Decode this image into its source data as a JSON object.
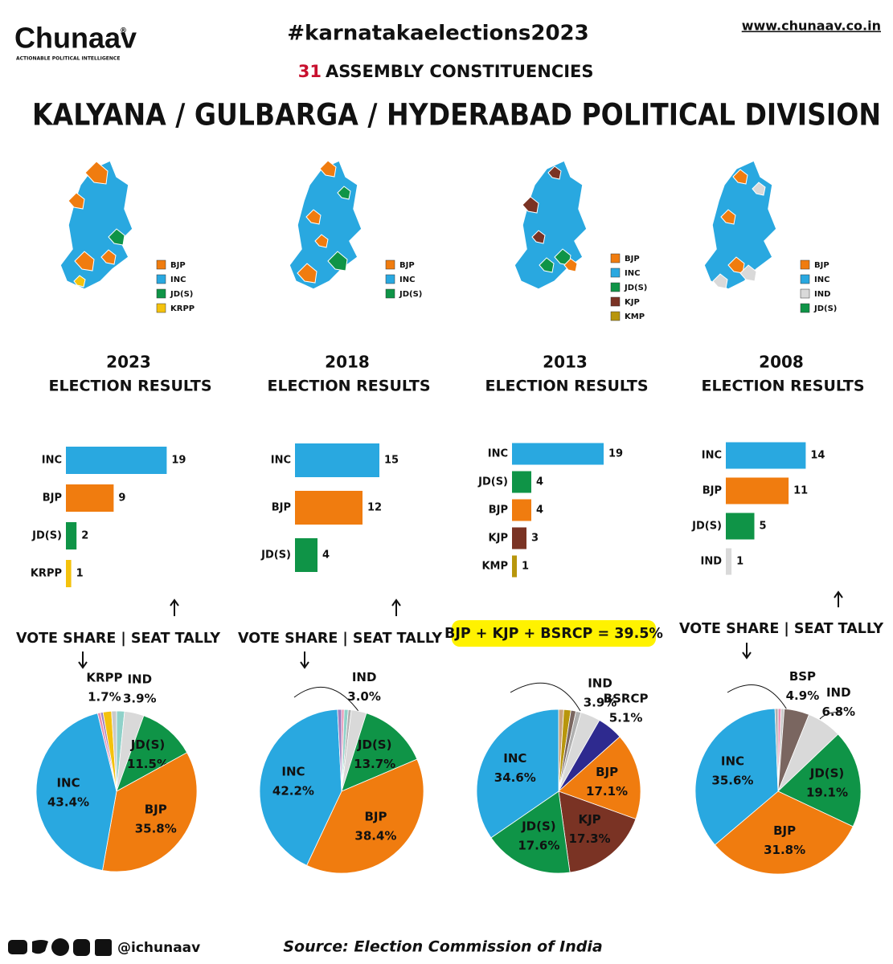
{
  "header": {
    "brand": "Chunaav",
    "registered": "®",
    "tagline": "ACTIONABLE POLITICAL INTELLIGENCE",
    "hashtag": "#karnatakaelections2023",
    "website": "www.chunaav.co.in",
    "seat_count": "31",
    "seat_text": "ASSEMBLY CONSTITUENCIES",
    "title": "KALYANA / GULBARGA / HYDERABAD POLITICAL DIVISION"
  },
  "maps": [
    {
      "legend": [
        {
          "label": "BJP",
          "color": "#f07c0f"
        },
        {
          "label": "INC",
          "color": "#29a8e0"
        },
        {
          "label": "JD(S)",
          "color": "#0f9447"
        },
        {
          "label": "KRPP",
          "color": "#f4c20d"
        }
      ]
    },
    {
      "legend": [
        {
          "label": "BJP",
          "color": "#f07c0f"
        },
        {
          "label": "INC",
          "color": "#29a8e0"
        },
        {
          "label": "JD(S)",
          "color": "#0f9447"
        }
      ]
    },
    {
      "legend": [
        {
          "label": "BJP",
          "color": "#f07c0f"
        },
        {
          "label": "INC",
          "color": "#29a8e0"
        },
        {
          "label": "JD(S)",
          "color": "#0f9447"
        },
        {
          "label": "KJP",
          "color": "#7a3324"
        },
        {
          "label": "KMP",
          "color": "#b8960c"
        }
      ]
    },
    {
      "legend": [
        {
          "label": "BJP",
          "color": "#f07c0f"
        },
        {
          "label": "INC",
          "color": "#29a8e0"
        },
        {
          "label": "IND",
          "color": "#d9d9d9"
        },
        {
          "label": "JD(S)",
          "color": "#0f9447"
        }
      ]
    }
  ],
  "chart_data": [
    {
      "type": "bar",
      "title": "2023",
      "subtitle": "ELECTION RESULTS",
      "categories": [
        "INC",
        "BJP",
        "JD(S)",
        "KRPP"
      ],
      "values": [
        19,
        9,
        2,
        1
      ],
      "colors": [
        "#29a8e0",
        "#f07c0f",
        "#0f9447",
        "#f4c20d"
      ]
    },
    {
      "type": "bar",
      "title": "2018",
      "subtitle": "ELECTION RESULTS",
      "categories": [
        "INC",
        "BJP",
        "JD(S)"
      ],
      "values": [
        15,
        12,
        4
      ],
      "colors": [
        "#29a8e0",
        "#f07c0f",
        "#0f9447"
      ]
    },
    {
      "type": "bar",
      "title": "2013",
      "subtitle": "ELECTION RESULTS",
      "categories": [
        "INC",
        "JD(S)",
        "BJP",
        "KJP",
        "KMP"
      ],
      "values": [
        19,
        4,
        4,
        3,
        1
      ],
      "colors": [
        "#29a8e0",
        "#0f9447",
        "#f07c0f",
        "#7a3324",
        "#b8960c"
      ]
    },
    {
      "type": "bar",
      "title": "2008",
      "subtitle": "ELECTION RESULTS",
      "categories": [
        "INC",
        "BJP",
        "JD(S)",
        "IND"
      ],
      "values": [
        14,
        11,
        5,
        1
      ],
      "colors": [
        "#29a8e0",
        "#f07c0f",
        "#0f9447",
        "#d9d9d9"
      ]
    },
    {
      "type": "pie",
      "annotation": "VOTE SHARE | SEAT TALLY",
      "categories": [
        null,
        "IND",
        "JD(S)",
        "BJP",
        "INC",
        null,
        null,
        "KRPP",
        null
      ],
      "values": [
        1.6,
        3.9,
        11.5,
        35.8,
        43.4,
        0.6,
        0.5,
        1.7,
        1.0
      ],
      "value_labels": [
        null,
        "3.9%",
        "11.5%",
        "35.8%",
        "43.4%",
        null,
        null,
        "1.7%",
        null
      ],
      "colors": [
        "#8fd1c9",
        "#d9d9d9",
        "#0f9447",
        "#f07c0f",
        "#29a8e0",
        "#e88fb0",
        "#9b7fc0",
        "#f4c20d",
        "#c9c9c9"
      ]
    },
    {
      "type": "pie",
      "annotation": "VOTE SHARE | SEAT TALLY",
      "categories": [
        null,
        null,
        null,
        "IND",
        "JD(S)",
        "BJP",
        "INC",
        null
      ],
      "values": [
        0.5,
        0.8,
        0.6,
        3.0,
        13.7,
        38.4,
        42.2,
        0.8
      ],
      "value_labels": [
        null,
        null,
        null,
        "3.0%",
        "13.7%",
        "38.4%",
        "42.2%",
        null
      ],
      "colors": [
        "#e88fb0",
        "#8fd1c9",
        "#b0b0b0",
        "#d9d9d9",
        "#0f9447",
        "#f07c0f",
        "#29a8e0",
        "#9b7fc0"
      ]
    },
    {
      "type": "pie",
      "annotation": "BJP + KJP + BSRCP = 39.5%",
      "categories": [
        null,
        null,
        null,
        null,
        "IND",
        "BSRCP",
        "BJP",
        "KJP",
        "JD(S)",
        "INC"
      ],
      "values": [
        1.0,
        1.4,
        1.0,
        1.0,
        3.9,
        5.1,
        17.1,
        17.3,
        17.6,
        34.6
      ],
      "value_labels": [
        null,
        null,
        null,
        null,
        "3.9%",
        "5.1%",
        "17.1%",
        "17.3%",
        "17.6%",
        "34.6%"
      ],
      "colors": [
        "#c9a27a",
        "#b8960c",
        "#7a6660",
        "#b0b0b0",
        "#d9d9d9",
        "#2e2a8f",
        "#f07c0f",
        "#7a3324",
        "#0f9447",
        "#29a8e0"
      ]
    },
    {
      "type": "pie",
      "annotation": "VOTE SHARE | SEAT TALLY",
      "categories": [
        null,
        null,
        "BSP",
        "IND",
        "JD(S)",
        "BJP",
        "INC",
        null
      ],
      "values": [
        0.6,
        0.6,
        4.9,
        6.8,
        19.1,
        31.8,
        35.6,
        0.6
      ],
      "value_labels": [
        null,
        null,
        "4.9%",
        "6.8%",
        "19.1%",
        "31.8%",
        "35.6%",
        null
      ],
      "colors": [
        "#e88fb0",
        "#c9c9c9",
        "#7a6660",
        "#d9d9d9",
        "#0f9447",
        "#f07c0f",
        "#29a8e0",
        "#b0b0b0"
      ]
    }
  ],
  "footer": {
    "handle": "@ichunaav",
    "source": "Source: Election Commission of India"
  }
}
